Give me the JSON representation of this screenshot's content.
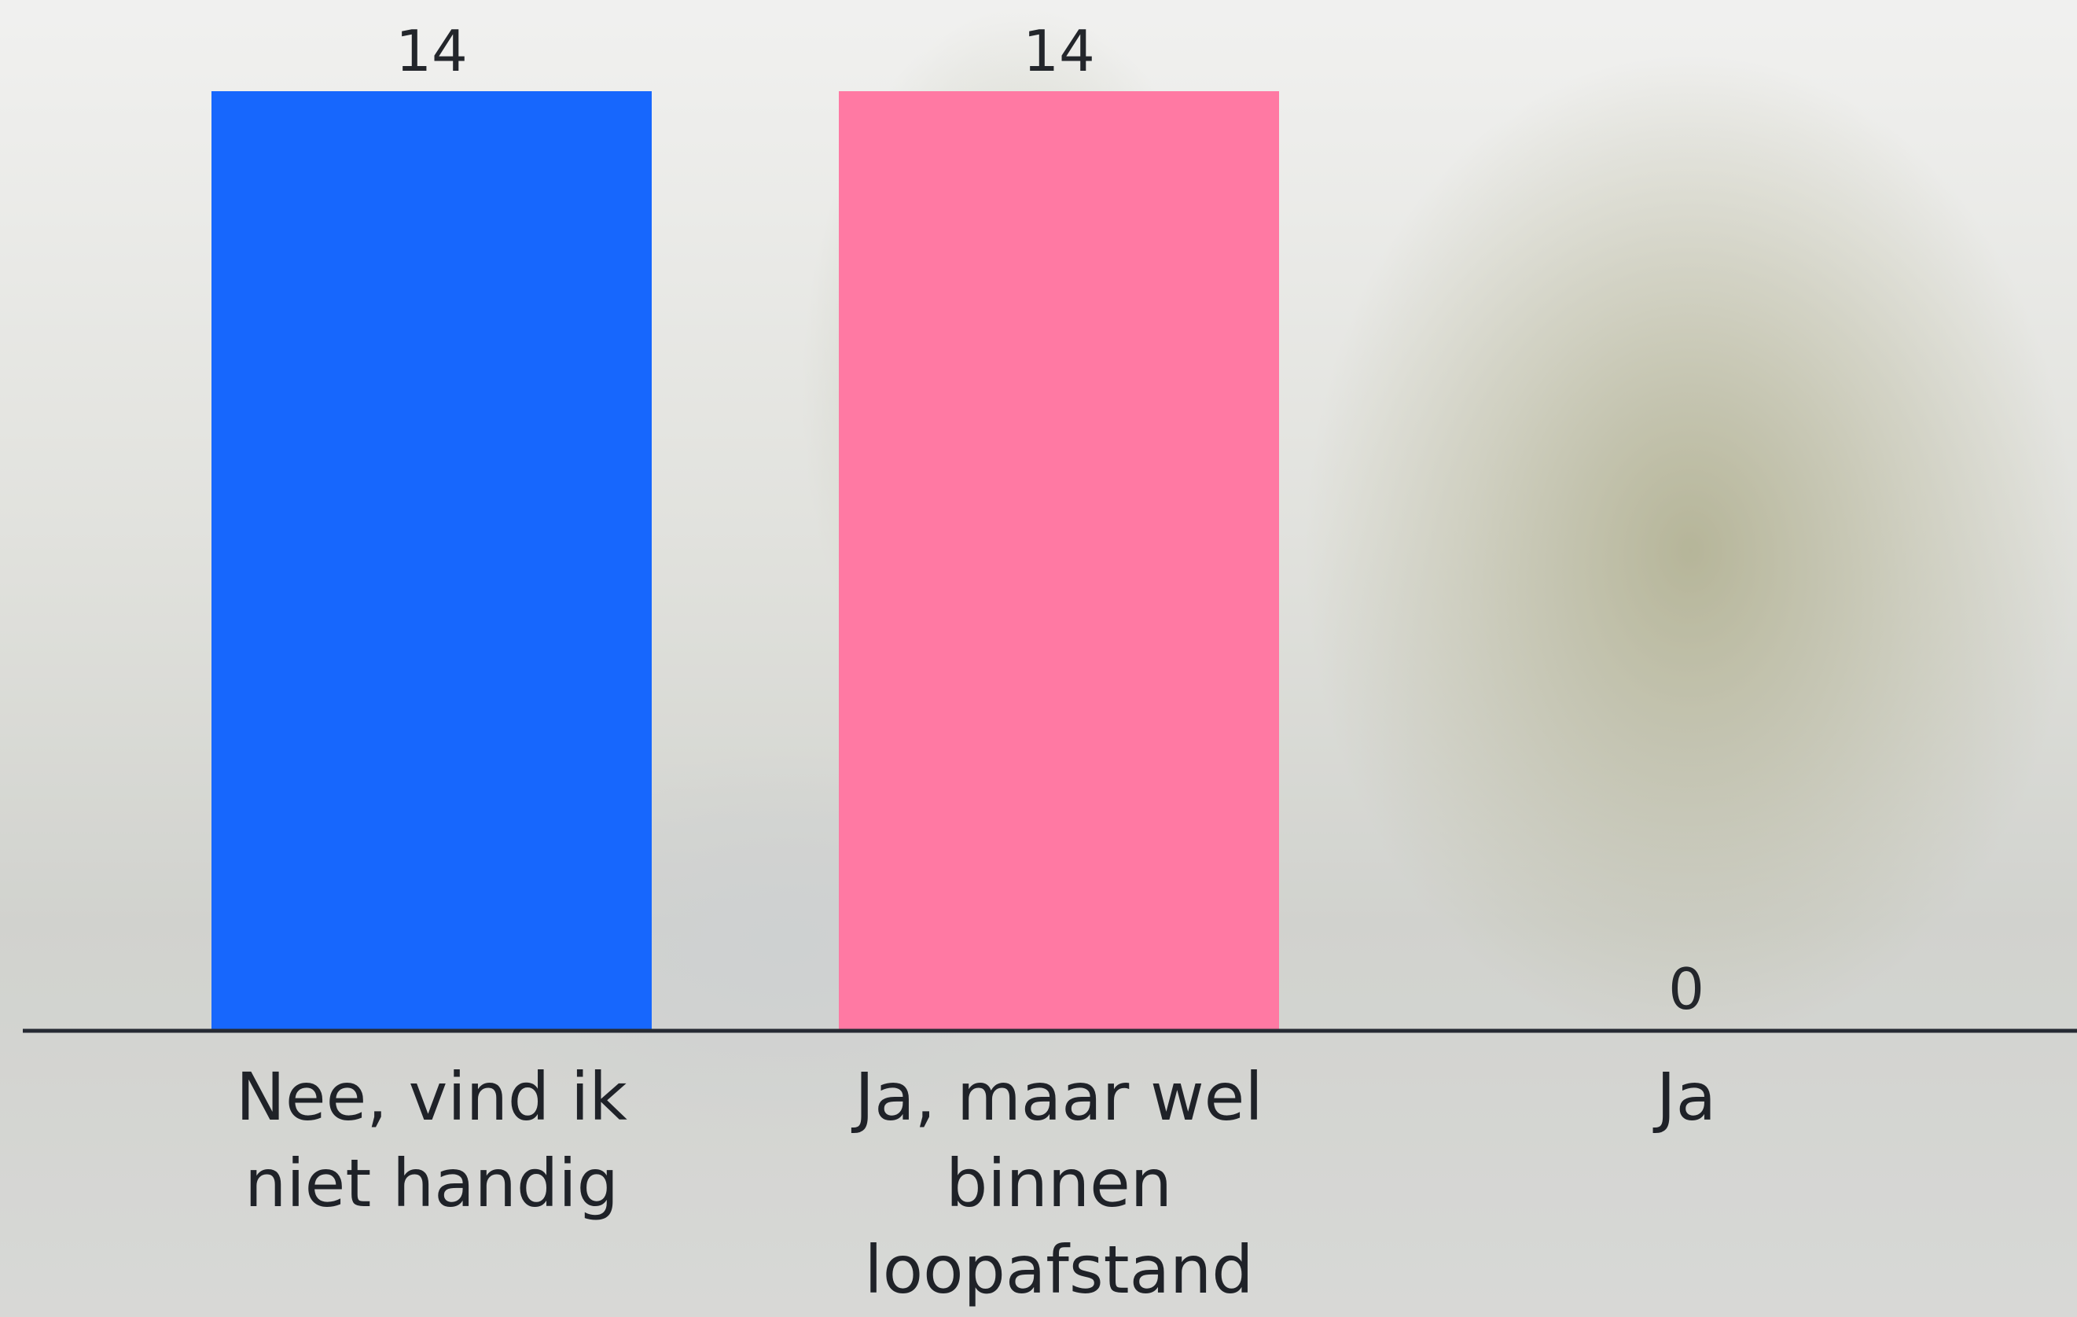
{
  "chart_data": {
    "type": "bar",
    "categories": [
      "Nee, vind ik niet handig",
      "Ja, maar wel binnen loopafstand",
      "Ja"
    ],
    "values": [
      14,
      14,
      0
    ],
    "colors": [
      "#1767fd",
      "#ff79a3",
      "#9cc7ff"
    ]
  }
}
